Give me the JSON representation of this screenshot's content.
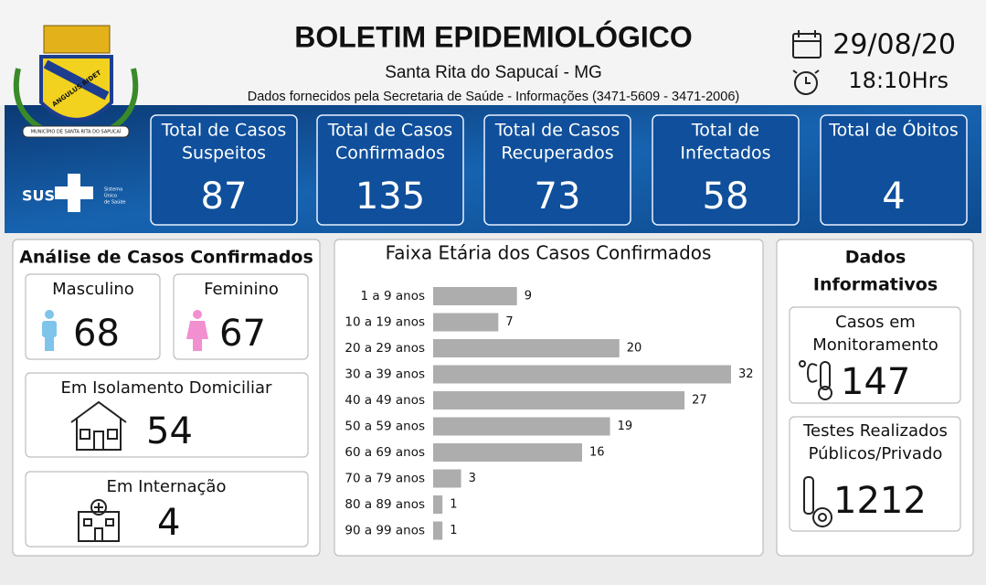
{
  "header": {
    "title": "BOLETIM EPIDEMIOLÓGICO",
    "location": "Santa Rita do Sapucaí - MG",
    "source": "Dados fornecidos pela Secretaria de Saúde - Informações (3471-5609 - 3471-2006)",
    "date": "29/08/20",
    "time": "18:10Hrs"
  },
  "logo": {
    "motto": "ANGULUS RIDET",
    "municipality": "MUNICÍPIO DE SANTA RITA DO SAPUCAÍ",
    "sus": "SUS",
    "sus_caption": [
      "Sistema",
      "Único",
      "de Saúde"
    ]
  },
  "totals": [
    {
      "label": [
        "Total de Casos",
        "Suspeitos"
      ],
      "value": 87
    },
    {
      "label": [
        "Total de Casos",
        "Confirmados"
      ],
      "value": 135
    },
    {
      "label": [
        "Total de Casos",
        "Recuperados"
      ],
      "value": 73
    },
    {
      "label": [
        "Total de",
        "Infectados"
      ],
      "value": 58
    },
    {
      "label": [
        "Total de Óbitos"
      ],
      "value": 4
    }
  ],
  "analysis": {
    "title": "Análise de Casos Confirmados",
    "male_label": "Masculino",
    "male": 68,
    "female_label": "Feminino",
    "female": 67,
    "isolation_label": "Em Isolamento Domiciliar",
    "isolation": 54,
    "hospital_label": "Em Internação",
    "hospital": 4
  },
  "chart_data": {
    "type": "bar",
    "orientation": "horizontal",
    "title": "Faixa Etária dos Casos Confirmados",
    "categories": [
      "1 a 9 anos",
      "10 a 19 anos",
      "20 a 29 anos",
      "30 a 39 anos",
      "40 a 49 anos",
      "50 a 59 anos",
      "60 a 69 anos",
      "70 a 79 anos",
      "80 a 89 anos",
      "90 a 99 anos"
    ],
    "values": [
      9,
      7,
      20,
      32,
      27,
      19,
      16,
      3,
      1,
      1
    ],
    "color": "#adadad"
  },
  "info": {
    "title": [
      "Dados",
      "Informativos"
    ],
    "monitoring_label": [
      "Casos em",
      "Monitoramento"
    ],
    "monitoring": 147,
    "tests_label": [
      "Testes Realizados",
      "Públicos/Privado"
    ],
    "tests": 1212
  }
}
